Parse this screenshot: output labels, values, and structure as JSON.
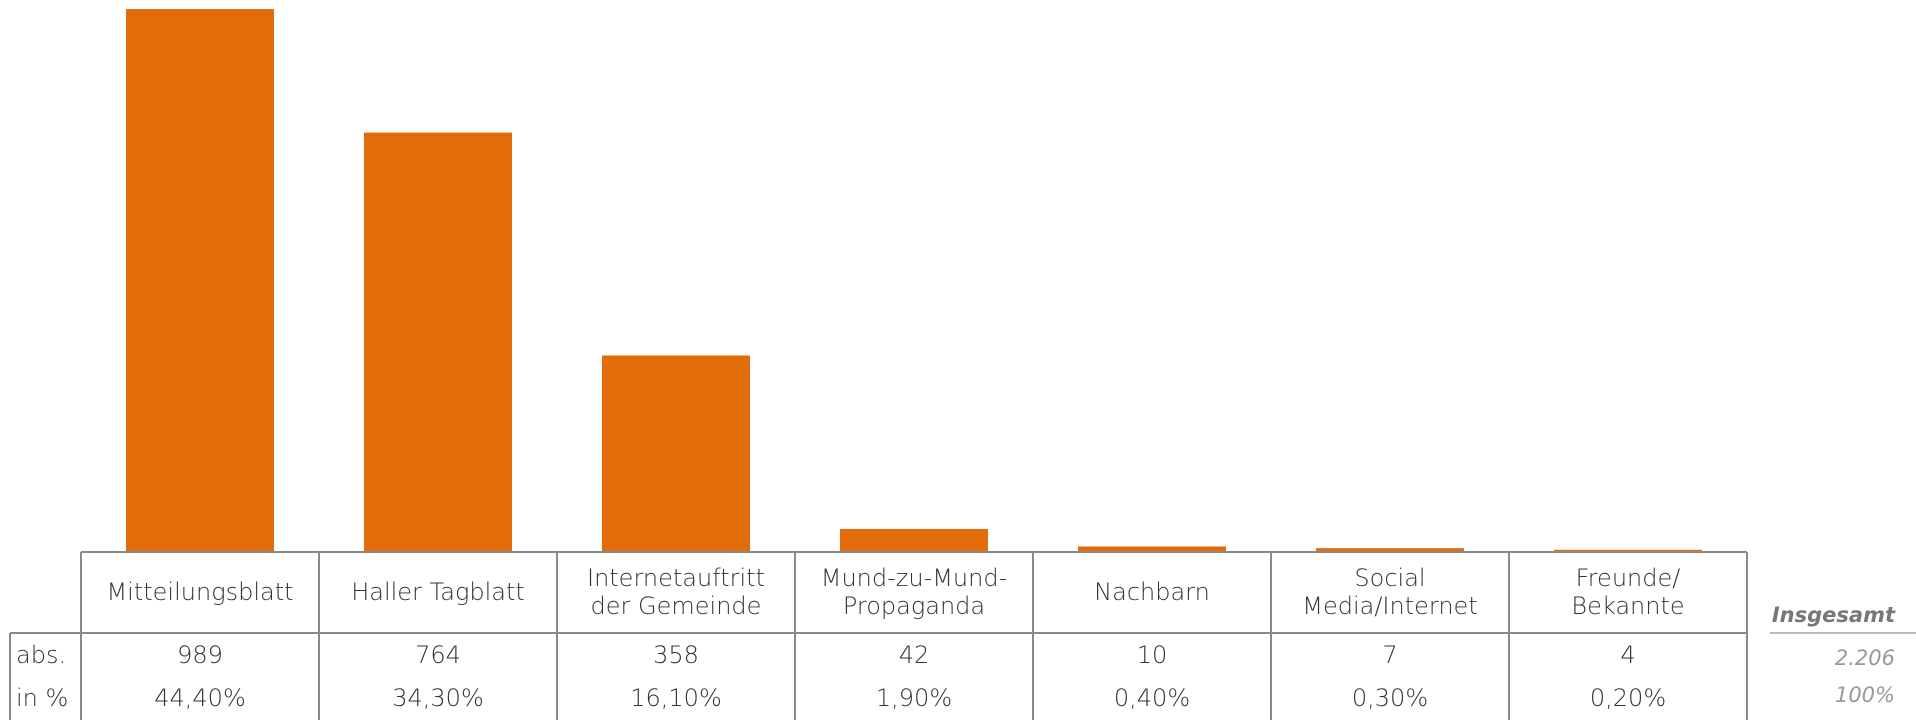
{
  "chart_data": {
    "type": "bar",
    "categories": [
      "Mitteilungsblatt",
      "Haller Tagblatt",
      "Internetauftritt\nder Gemeinde",
      "Mund-zu-Mund-\nPropaganda",
      "Nachbarn",
      "Social\nMedia/Internet",
      "Freunde/\nBekannte"
    ],
    "values": [
      989,
      764,
      358,
      42,
      10,
      7,
      4
    ],
    "percentages": [
      "44,40%",
      "34,30%",
      "16,10%",
      "1,90%",
      "0,40%",
      "0,30%",
      "0,20%"
    ],
    "row_labels": [
      "abs.",
      "in %"
    ],
    "total": {
      "title": "Insgesamt",
      "abs": "2.206",
      "percent": "100%"
    },
    "color": "#e36c0a",
    "ylim": [
      0,
      1000
    ]
  }
}
